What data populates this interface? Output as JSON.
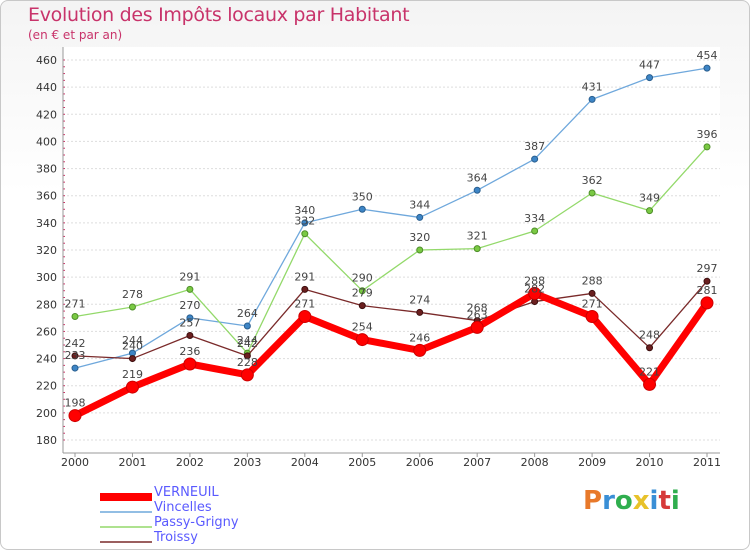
{
  "header": {
    "title": "Evolution des Impôts locaux par Habitant",
    "subtitle": "(en € et par an)"
  },
  "logo": {
    "text": "Proxiti",
    "colors": [
      "#e8792a",
      "#3a8fd6",
      "#2fae4e",
      "#e8c22a",
      "#3a8fd6",
      "#d63a3a",
      "#2fae4e"
    ]
  },
  "chart_data": {
    "type": "line",
    "title": "Evolution des Impôts locaux par Habitant",
    "subtitle": "(en € et par an)",
    "x": [
      2000,
      2001,
      2002,
      2003,
      2004,
      2005,
      2006,
      2007,
      2008,
      2009,
      2010,
      2011
    ],
    "ylim": [
      180,
      460
    ],
    "yticks": [
      180,
      200,
      220,
      240,
      260,
      280,
      300,
      320,
      340,
      360,
      380,
      400,
      420,
      440,
      460
    ],
    "grid": "horizontal",
    "legend": "bottom-left",
    "series": [
      {
        "name": "VERNEUIL",
        "color": "#ff0000",
        "values": [
          198,
          219,
          236,
          228,
          271,
          254,
          246,
          263,
          288,
          271,
          221,
          281
        ]
      },
      {
        "name": "Vincelles",
        "color": "#6fa8dc",
        "values": [
          233,
          244,
          270,
          264,
          340,
          350,
          344,
          364,
          387,
          431,
          447,
          454
        ]
      },
      {
        "name": "Passy-Grigny",
        "color": "#93d96a",
        "values": [
          271,
          278,
          291,
          244,
          332,
          290,
          320,
          321,
          334,
          362,
          349,
          396
        ]
      },
      {
        "name": "Troissy",
        "color": "#7a2a2a",
        "values": [
          242,
          240,
          257,
          242,
          291,
          279,
          274,
          268,
          282,
          288,
          248,
          297
        ]
      }
    ]
  }
}
